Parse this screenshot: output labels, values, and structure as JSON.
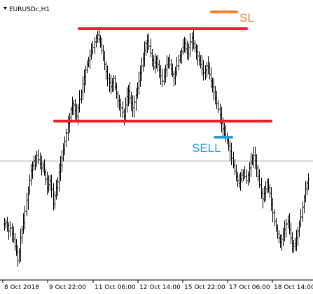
{
  "symbol_label": "EURUSDc,H1",
  "colors": {
    "background": "#ffffff",
    "bars": "#000000",
    "range_lines": "#e8202a",
    "sl": "#f0822a",
    "sell": "#2a9fd6",
    "horizontal_line": "#b0b0b0"
  },
  "chart_data": {
    "type": "ohlc",
    "title": "EURUSDc,H1",
    "timeframe": "H1",
    "x_tick_labels": [
      "8 Oct 2018",
      "9 Oct 22:00",
      "11 Oct 06:00",
      "12 Oct 14:00",
      "15 Oct 22:00",
      "17 Oct 06:00",
      "18 Oct 14:00"
    ],
    "y_tick_labels": [],
    "grid": false,
    "legend": "none",
    "price_path": [
      320,
      318,
      322,
      330,
      326,
      334,
      342,
      352,
      360,
      372,
      360,
      340,
      328,
      318,
      302,
      286,
      272,
      258,
      244,
      236,
      230,
      226,
      222,
      228,
      234,
      240,
      236,
      246,
      256,
      268,
      264,
      258,
      270,
      292,
      280,
      268,
      260,
      246,
      236,
      226,
      214,
      202,
      190,
      176,
      168,
      156,
      148,
      150,
      158,
      166,
      154,
      142,
      132,
      120,
      110,
      100,
      92,
      86,
      80,
      74,
      68,
      60,
      54,
      50,
      56,
      64,
      72,
      82,
      92,
      102,
      112,
      118,
      124,
      118,
      112,
      124,
      134,
      144,
      150,
      154,
      160,
      166,
      150,
      138,
      130,
      140,
      148,
      154,
      146,
      136,
      126,
      116,
      104,
      94,
      84,
      72,
      62,
      58,
      66,
      76,
      86,
      96,
      90,
      84,
      92,
      100,
      108,
      116,
      110,
      100,
      92,
      86,
      92,
      98,
      106,
      112,
      104,
      94,
      86,
      80,
      74,
      68,
      62,
      70,
      76,
      68,
      60,
      54,
      62,
      68,
      74,
      80,
      86,
      92,
      98,
      104,
      100,
      94,
      96,
      106,
      116,
      124,
      132,
      140,
      148,
      156,
      164,
      176,
      184,
      192,
      196,
      200,
      208,
      216,
      226,
      236,
      244,
      252,
      258,
      262,
      256,
      250,
      246,
      252,
      258,
      250,
      240,
      232,
      226,
      222,
      230,
      240,
      252,
      264,
      276,
      284,
      276,
      270,
      260,
      268,
      276,
      292,
      304,
      316,
      326,
      334,
      340,
      346,
      342,
      334,
      328,
      320,
      316,
      328,
      340,
      348,
      352,
      348,
      340,
      330,
      320,
      310,
      296,
      282,
      270,
      262,
      256
    ]
  },
  "annotations": {
    "sl": {
      "label": "SL"
    },
    "sell": {
      "label": "SELL"
    }
  }
}
